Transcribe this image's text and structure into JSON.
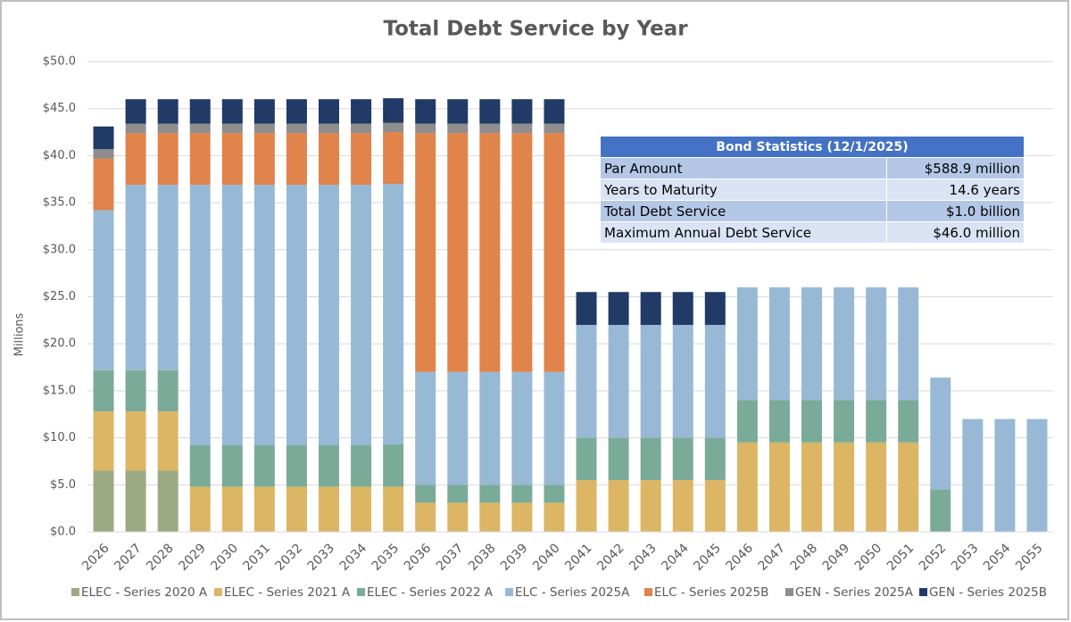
{
  "chart_data": {
    "type": "stacked_bar",
    "title": "Total Debt Service by Year",
    "y_label": "Millions",
    "categories": [
      "2026",
      "2027",
      "2028",
      "2029",
      "2030",
      "2031",
      "2032",
      "2033",
      "2034",
      "2035",
      "2036",
      "2037",
      "2038",
      "2039",
      "2040",
      "2041",
      "2042",
      "2043",
      "2044",
      "2045",
      "2046",
      "2047",
      "2048",
      "2049",
      "2050",
      "2051",
      "2052",
      "2053",
      "2054",
      "2055"
    ],
    "ylim": [
      0,
      50
    ],
    "yticks": [
      {
        "value": 0,
        "label": "$0.0"
      },
      {
        "value": 5,
        "label": "$5.0"
      },
      {
        "value": 10,
        "label": "$10.0"
      },
      {
        "value": 15,
        "label": "$15.0"
      },
      {
        "value": 20,
        "label": "$20.0"
      },
      {
        "value": 25,
        "label": "$25.0"
      },
      {
        "value": 30,
        "label": "$30.0"
      },
      {
        "value": 35,
        "label": "$35.0"
      },
      {
        "value": 40,
        "label": "$40.0"
      },
      {
        "value": 45,
        "label": "$45.0"
      },
      {
        "value": 50,
        "label": "$50.0"
      }
    ],
    "grid": true,
    "legend": "bottom",
    "series": [
      {
        "name": "ELEC - Series 2020 A",
        "color": "#9caa83",
        "values": [
          6.5,
          6.5,
          6.5,
          null,
          null,
          null,
          null,
          null,
          null,
          null,
          null,
          null,
          null,
          null,
          null,
          null,
          null,
          null,
          null,
          null,
          null,
          null,
          null,
          null,
          null,
          null,
          null,
          null,
          null,
          null
        ]
      },
      {
        "name": "ELEC - Series 2021 A",
        "color": "#dcb665",
        "values": [
          6.3,
          6.3,
          6.3,
          4.8,
          4.8,
          4.8,
          4.8,
          4.8,
          4.8,
          4.8,
          3.1,
          3.1,
          3.1,
          3.1,
          3.1,
          5.5,
          5.5,
          5.5,
          5.5,
          5.5,
          9.5,
          9.5,
          9.5,
          9.5,
          9.5,
          9.5,
          null,
          null,
          null,
          null
        ]
      },
      {
        "name": "ELEC - Series 2022 A",
        "color": "#7aab98",
        "values": [
          4.4,
          4.4,
          4.4,
          4.4,
          4.4,
          4.4,
          4.4,
          4.4,
          4.4,
          4.5,
          1.9,
          1.9,
          1.9,
          1.9,
          1.9,
          4.5,
          4.5,
          4.5,
          4.5,
          4.5,
          4.5,
          4.5,
          4.5,
          4.5,
          4.5,
          4.5,
          4.5,
          null,
          null,
          null
        ]
      },
      {
        "name": "ELC - Series 2025A",
        "color": "#98b9d6",
        "values": [
          17.0,
          19.7,
          19.7,
          27.7,
          27.7,
          27.7,
          27.7,
          27.7,
          27.7,
          27.7,
          12.0,
          12.0,
          12.0,
          12.0,
          12.0,
          12.0,
          12.0,
          12.0,
          12.0,
          12.0,
          12.0,
          12.0,
          12.0,
          12.0,
          12.0,
          12.0,
          11.9,
          12.0,
          12.0,
          12.0
        ]
      },
      {
        "name": "ELC - Series 2025B",
        "color": "#e0844b",
        "values": [
          5.5,
          5.5,
          5.5,
          5.5,
          5.5,
          5.5,
          5.5,
          5.5,
          5.5,
          5.5,
          25.4,
          25.4,
          25.4,
          25.4,
          25.4,
          null,
          null,
          null,
          null,
          null,
          null,
          null,
          null,
          null,
          null,
          null,
          null,
          null,
          null,
          null
        ]
      },
      {
        "name": "GEN - Series 2025A",
        "color": "#8e8e8e",
        "values": [
          1.0,
          1.0,
          1.0,
          1.0,
          1.0,
          1.0,
          1.0,
          1.0,
          1.0,
          1.0,
          1.0,
          1.0,
          1.0,
          1.0,
          1.0,
          null,
          null,
          null,
          null,
          null,
          null,
          null,
          null,
          null,
          null,
          null,
          null,
          null,
          null,
          null
        ]
      },
      {
        "name": "GEN - Series 2025B",
        "color": "#213a66",
        "values": [
          2.4,
          2.6,
          2.6,
          2.6,
          2.6,
          2.6,
          2.6,
          2.6,
          2.6,
          2.6,
          2.6,
          2.6,
          2.6,
          2.6,
          2.6,
          3.5,
          3.5,
          3.5,
          3.5,
          3.5,
          null,
          null,
          null,
          null,
          null,
          null,
          null,
          null,
          null,
          null
        ]
      }
    ]
  },
  "stats_table": {
    "title": "Bond Statistics (12/1/2025)",
    "rows": [
      [
        "Par Amount",
        "$588.9 million"
      ],
      [
        "Years to Maturity",
        "14.6 years"
      ],
      [
        "Total Debt Service",
        "$1.0 billion"
      ],
      [
        "Maximum Annual Debt Service",
        "$46.0 million"
      ]
    ]
  }
}
